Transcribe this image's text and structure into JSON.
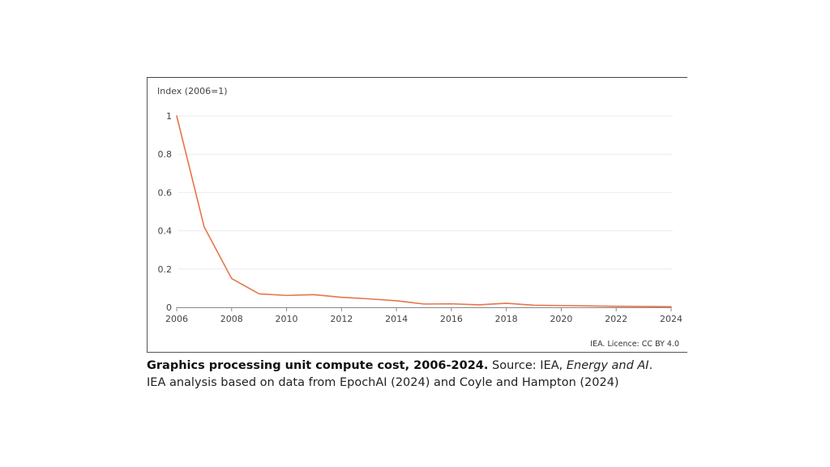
{
  "chart_data": {
    "type": "line",
    "title": "Graphics processing unit compute cost, 2006-2024",
    "ylabel": "Index (2006=1)",
    "xlabel": "",
    "x": [
      2006,
      2007,
      2008,
      2009,
      2010,
      2011,
      2012,
      2013,
      2014,
      2015,
      2016,
      2017,
      2018,
      2019,
      2020,
      2021,
      2022,
      2023,
      2024
    ],
    "series": [
      {
        "name": "GPU compute cost index",
        "color": "#E8744A",
        "values": [
          1.0,
          0.42,
          0.15,
          0.07,
          0.062,
          0.066,
          0.052,
          0.044,
          0.034,
          0.017,
          0.018,
          0.013,
          0.021,
          0.011,
          0.009,
          0.007,
          0.005,
          0.004,
          0.003
        ]
      }
    ],
    "xlim": [
      2006,
      2024
    ],
    "ylim": [
      0,
      1
    ],
    "x_ticks": [
      "2006",
      "2008",
      "2010",
      "2012",
      "2014",
      "2016",
      "2018",
      "2020",
      "2022",
      "2024"
    ],
    "y_ticks": [
      "0",
      "0.2",
      "0.4",
      "0.6",
      "0.8",
      "1"
    ],
    "grid": "horizontal",
    "legend": "none"
  },
  "chart_frame": {
    "unit_label": "Index (2006=1)",
    "licence": "IEA. Licence: CC BY 4.0"
  },
  "caption": {
    "title_bold": "Graphics processing unit compute cost, 2006-2024.",
    "source_prefix": " Source: IEA, ",
    "source_italic": "Energy and AI",
    "source_suffix": ".",
    "note": "IEA analysis based on data from EpochAI (2024) and Coyle and Hampton (2024)"
  },
  "colors": {
    "line": "#E8744A",
    "grid": "#EBEBEB",
    "axis": "#888888",
    "text": "#444444"
  }
}
